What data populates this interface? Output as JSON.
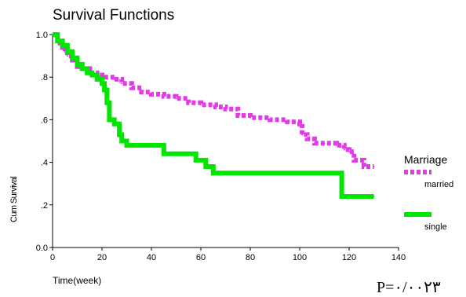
{
  "chart_data": {
    "type": "line",
    "title": "Survival Functions",
    "xlabel": "Time(week)",
    "ylabel": "Cum Survival",
    "xlim": [
      0,
      140
    ],
    "ylim": [
      0.0,
      1.0
    ],
    "x_ticks": [
      "0",
      "20",
      "40",
      "60",
      "80",
      "100",
      "120",
      "140"
    ],
    "y_ticks": [
      "0.0",
      ".2",
      ".4",
      ".6",
      ".8",
      "1.0"
    ],
    "grid": false,
    "legend_title": "Marriage",
    "legend_position": "right",
    "annotation": "P=۰/۰۰۲۳",
    "series": [
      {
        "name": "married",
        "color": "#e23ae8",
        "style": "dashed",
        "x": [
          0,
          1,
          2,
          3,
          4,
          5,
          6,
          8,
          10,
          12,
          15,
          18,
          20,
          22,
          25,
          28,
          32,
          36,
          40,
          45,
          50,
          55,
          60,
          66,
          70,
          75,
          80,
          88,
          95,
          100,
          101,
          103,
          106,
          110,
          115,
          118,
          120,
          122,
          126,
          130
        ],
        "y": [
          1.0,
          0.99,
          0.98,
          0.96,
          0.94,
          0.92,
          0.9,
          0.88,
          0.85,
          0.84,
          0.82,
          0.81,
          0.8,
          0.8,
          0.79,
          0.77,
          0.75,
          0.73,
          0.72,
          0.71,
          0.7,
          0.68,
          0.67,
          0.66,
          0.65,
          0.62,
          0.61,
          0.6,
          0.59,
          0.58,
          0.53,
          0.51,
          0.49,
          0.49,
          0.48,
          0.46,
          0.45,
          0.41,
          0.38,
          0.38
        ]
      },
      {
        "name": "single",
        "color": "#00e600",
        "style": "solid",
        "x": [
          0,
          2,
          4,
          6,
          8,
          10,
          12,
          14,
          16,
          18,
          20,
          21,
          22,
          23,
          25,
          27,
          28,
          30,
          35,
          40,
          45,
          55,
          58,
          62,
          64,
          65,
          70,
          100,
          116,
          117,
          130
        ],
        "y": [
          1.0,
          0.97,
          0.95,
          0.92,
          0.89,
          0.86,
          0.84,
          0.82,
          0.81,
          0.79,
          0.77,
          0.74,
          0.68,
          0.6,
          0.58,
          0.53,
          0.5,
          0.48,
          0.48,
          0.48,
          0.44,
          0.44,
          0.41,
          0.38,
          0.38,
          0.35,
          0.35,
          0.35,
          0.35,
          0.24,
          0.24
        ]
      }
    ]
  }
}
